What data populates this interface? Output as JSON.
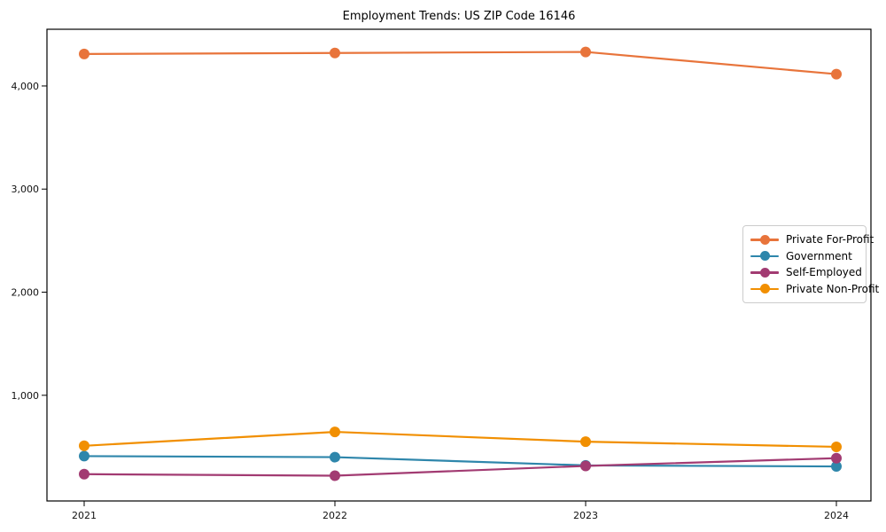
{
  "chart_data": {
    "type": "line",
    "title": "Employment Trends: US ZIP Code 16146",
    "xlabel": "",
    "ylabel": "",
    "categories": [
      "2021",
      "2022",
      "2023",
      "2024"
    ],
    "series": [
      {
        "name": "Private For-Profit",
        "color": "#E8743B",
        "values": [
          4310,
          4320,
          4330,
          4115
        ]
      },
      {
        "name": "Government",
        "color": "#2E86AB",
        "values": [
          410,
          400,
          320,
          310
        ]
      },
      {
        "name": "Self-Employed",
        "color": "#A23B72",
        "values": [
          235,
          220,
          315,
          390
        ]
      },
      {
        "name": "Private Non-Profit",
        "color": "#F18F01",
        "values": [
          510,
          645,
          550,
          500
        ]
      }
    ],
    "yticks": [
      {
        "value": 1000,
        "label": "1,000"
      },
      {
        "value": 2000,
        "label": "2,000"
      },
      {
        "value": 3000,
        "label": "3,000"
      },
      {
        "value": 4000,
        "label": "4,000"
      }
    ],
    "ylim": [
      -25,
      4550
    ],
    "grid": false,
    "legend_position": "center right",
    "marker": "circle",
    "background_color": "#ffffff",
    "axis_color": "#000000"
  }
}
